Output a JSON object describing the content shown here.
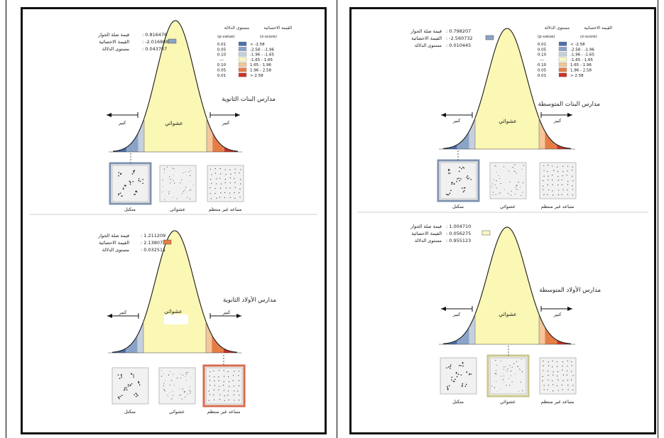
{
  "colors": {
    "curve_fill": "#fbf7b4",
    "curve_stroke": "#1a1a1a",
    "z_blue_dark": "#4b6fa8",
    "z_blue_mid": "#8aa4c8",
    "z_blue_light": "#c6cfdc",
    "z_neutral": "#faf6bf",
    "z_orange_light": "#f3c69b",
    "z_orange": "#e67d47",
    "z_red": "#c9342a",
    "highlight_blue": "#7f94b0",
    "highlight_red": "#d86a4c",
    "highlight_yellow": "#c9c88c"
  },
  "legend": {
    "head_z": "القيمة الاحصائية",
    "head_p": "مستوى الدلالة",
    "sub_z": "(z-score)",
    "sub_p": "(p-value)",
    "rows": [
      {
        "p": "0.01",
        "z": "< -2.58"
      },
      {
        "p": "0.05",
        "z": "-2.58 - -1.96"
      },
      {
        "p": "0.10",
        "z": "-1.96 - -1.65"
      },
      {
        "p": "---",
        "z": "-1.65 - 1.65"
      },
      {
        "p": "0.10",
        "z": "1.65 - 1.96"
      },
      {
        "p": "0.05",
        "z": "1.96 - 2.58"
      },
      {
        "p": "0.01",
        "z": "> 2.58"
      }
    ]
  },
  "labels": {
    "random": "عشوائي",
    "significant": "كبير",
    "clustered": "متكتل",
    "dispersed": "متباعد غير منتظم",
    "nn_ratio": "قيمة صلة الجوار",
    "z_score": "القيمة الاحصائية",
    "p_value": "مستوى الدلالة"
  },
  "panels": [
    {
      "id": "left",
      "diagrams": [
        {
          "title": "مدارس البنات الثانوية",
          "nn_ratio": ": 0.816476",
          "z_score": ": -2.016888",
          "p_value": ": 0.043707",
          "result": "clustered",
          "z_swatch": "#8aa4c8",
          "show_legend": true
        },
        {
          "title": "مدارس الأولاد الثانوية",
          "nn_ratio": ": 1.211209",
          "z_score": ": 2.138072",
          "p_value": ": 0.032511",
          "result": "dispersed",
          "z_swatch": "#e67d47",
          "show_legend": false
        }
      ]
    },
    {
      "id": "right",
      "diagrams": [
        {
          "title": "مدارس البنات المتوسطة",
          "nn_ratio": ": 0.798207",
          "z_score": ": -2.560732",
          "p_value": ": 0.010445",
          "result": "clustered",
          "z_swatch": "#8aa4c8",
          "show_legend": true
        },
        {
          "title": "مدارس الأولاد المتوسطة",
          "nn_ratio": ": 1.004710",
          "z_score": ": 0.056275",
          "p_value": ": 0.955123",
          "result": "random",
          "z_swatch": "#faf6bf",
          "show_legend": false
        }
      ]
    }
  ]
}
